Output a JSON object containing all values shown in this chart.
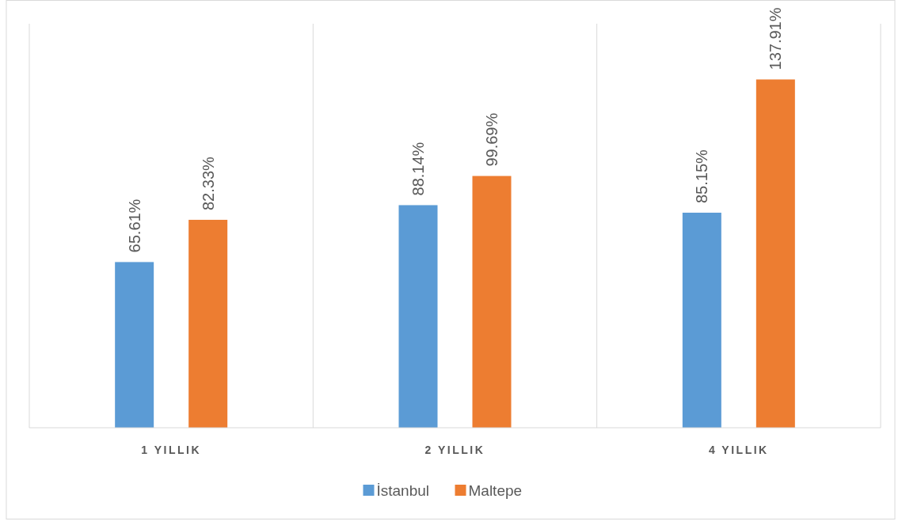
{
  "chart_data": {
    "type": "bar",
    "categories": [
      "1 YILLIK",
      "2 YILLIK",
      "4 YILLIK"
    ],
    "series": [
      {
        "name": "İstanbul",
        "color": "#5b9bd5",
        "values": [
          65.61,
          88.14,
          85.15
        ],
        "value_labels": [
          "65.61%",
          "88.14%",
          "85.15%"
        ]
      },
      {
        "name": "Maltepe",
        "color": "#ed7d31",
        "values": [
          82.33,
          99.69,
          137.91
        ],
        "value_labels": [
          "82.33%",
          "99.69%",
          "137.91%"
        ]
      }
    ],
    "grid": "x",
    "legend": "bottom"
  }
}
